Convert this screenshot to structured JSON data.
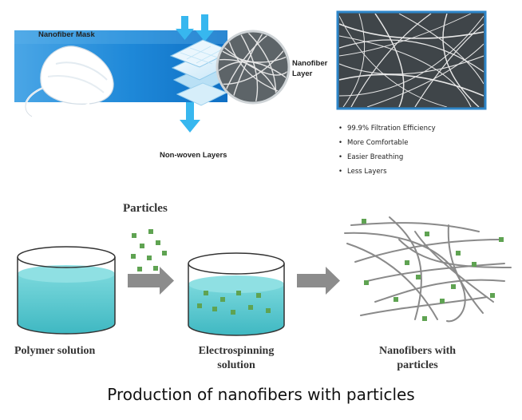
{
  "top_panel": {
    "mask_label": "Nanofiber Mask",
    "layer_label_line1": "Nanofiber",
    "layer_label_line2": "Layer",
    "nonwoven_label": "Non-woven Layers",
    "benefits": [
      "99.9% Filtration Efficiency",
      "More Comfortable",
      "Easier Breathing",
      "Less Layers"
    ]
  },
  "process": {
    "particles_label": "Particles",
    "step1_label": "Polymer solution",
    "step2_line1": "Electrospinning",
    "step2_line2": "solution",
    "step3_line1": "Nanofibers with",
    "step3_line2": "particles"
  },
  "caption": "Production of nanofibers with particles",
  "colors": {
    "band_blue": "#1e88d8",
    "arrow_cyan": "#37b7ef",
    "liquid": "#54c8cf",
    "particle": "#5fa352",
    "fiber": "#8a8a8a",
    "process_arrow": "#8c8c8c"
  },
  "icons": [
    "mask-icon",
    "filter-layers-icon",
    "down-arrow-icon",
    "nanofiber-closeup-icon",
    "dish-icon",
    "right-arrow-icon"
  ]
}
